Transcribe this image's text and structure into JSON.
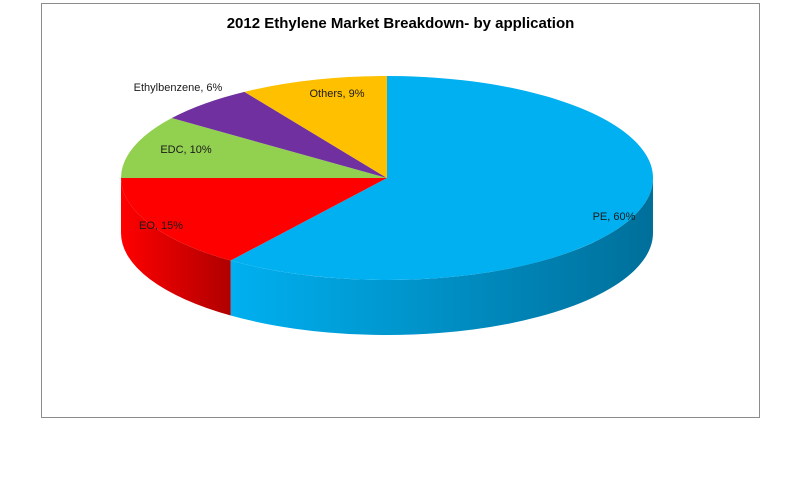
{
  "chart_data": {
    "type": "pie",
    "title": "2012 Ethylene Market Breakdown- by application",
    "slices": [
      {
        "label": "PE",
        "value": 60,
        "data_label": "PE, 60%",
        "color": "#00b0f0",
        "side_color": "#006f9a"
      },
      {
        "label": "EO",
        "value": 15,
        "data_label": "EO, 15%",
        "color": "#ff0000",
        "side_color": "#b00000"
      },
      {
        "label": "EDC",
        "value": 10,
        "data_label": "EDC, 10%",
        "color": "#92d050",
        "side_color": "#5f8f2c"
      },
      {
        "label": "Ethylbenzene",
        "value": 6,
        "data_label": "Ethylbenzene,  6%",
        "color": "#7030a0",
        "side_color": "#4a1f6b"
      },
      {
        "label": "Others",
        "value": 9,
        "data_label": "Others, 9%",
        "color": "#ffc000",
        "side_color": "#b38600"
      }
    ],
    "style": "3d-pie",
    "start": "top, clockwise"
  }
}
